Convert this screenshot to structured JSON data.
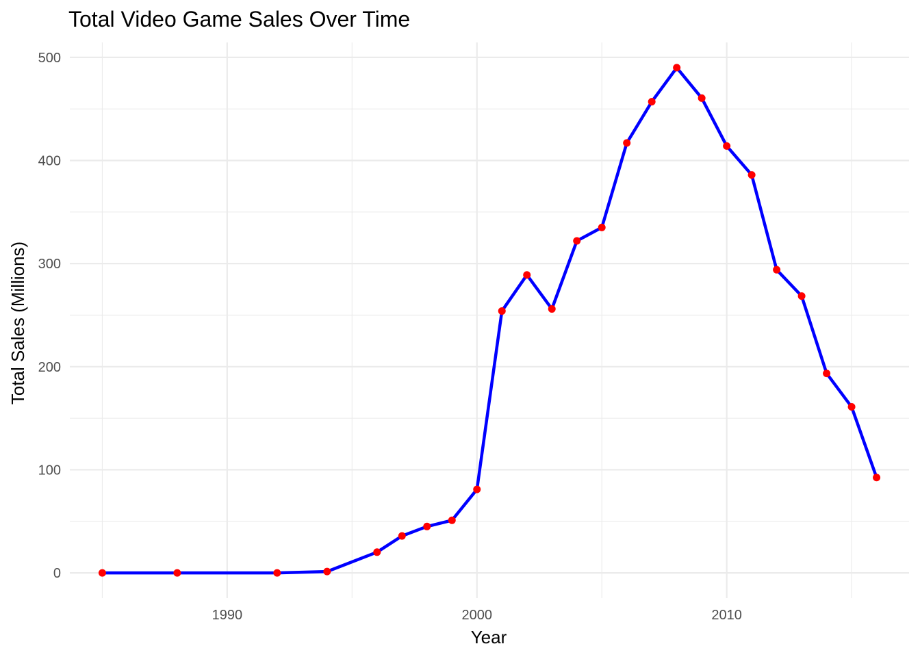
{
  "chart_data": {
    "type": "line",
    "title": "Total Video Game Sales Over Time",
    "xlabel": "Year",
    "ylabel": "Total Sales (Millions)",
    "xlim": [
      1983.7,
      2017.3
    ],
    "ylim": [
      -24.5,
      514.5
    ],
    "x_ticks": [
      1990,
      2000,
      2010
    ],
    "x_minor_ticks": [
      1985,
      1995,
      2005,
      2015
    ],
    "y_ticks": [
      0,
      100,
      200,
      300,
      400,
      500
    ],
    "y_minor_ticks": [
      50,
      150,
      250,
      350,
      450
    ],
    "grid": true,
    "legend": "none",
    "line_color": "#0000ff",
    "point_color": "#ff0000",
    "series": [
      {
        "x": [
          1985,
          1988,
          1992,
          1994,
          1996,
          1997,
          1998,
          1999,
          2000,
          2001,
          2002,
          2003,
          2004,
          2005,
          2006,
          2007,
          2008,
          2009,
          2010,
          2011,
          2012,
          2013,
          2014,
          2015,
          2016
        ],
        "values": [
          0.0,
          0.0,
          0.0,
          1.3,
          20.1,
          35.8,
          45.0,
          51.0,
          81.0,
          254.0,
          289.0,
          256.0,
          322.0,
          335.0,
          417.0,
          457.0,
          490.0,
          460.5,
          414.0,
          386.0,
          294.0,
          268.5,
          193.5,
          161.0,
          92.5
        ]
      }
    ]
  }
}
